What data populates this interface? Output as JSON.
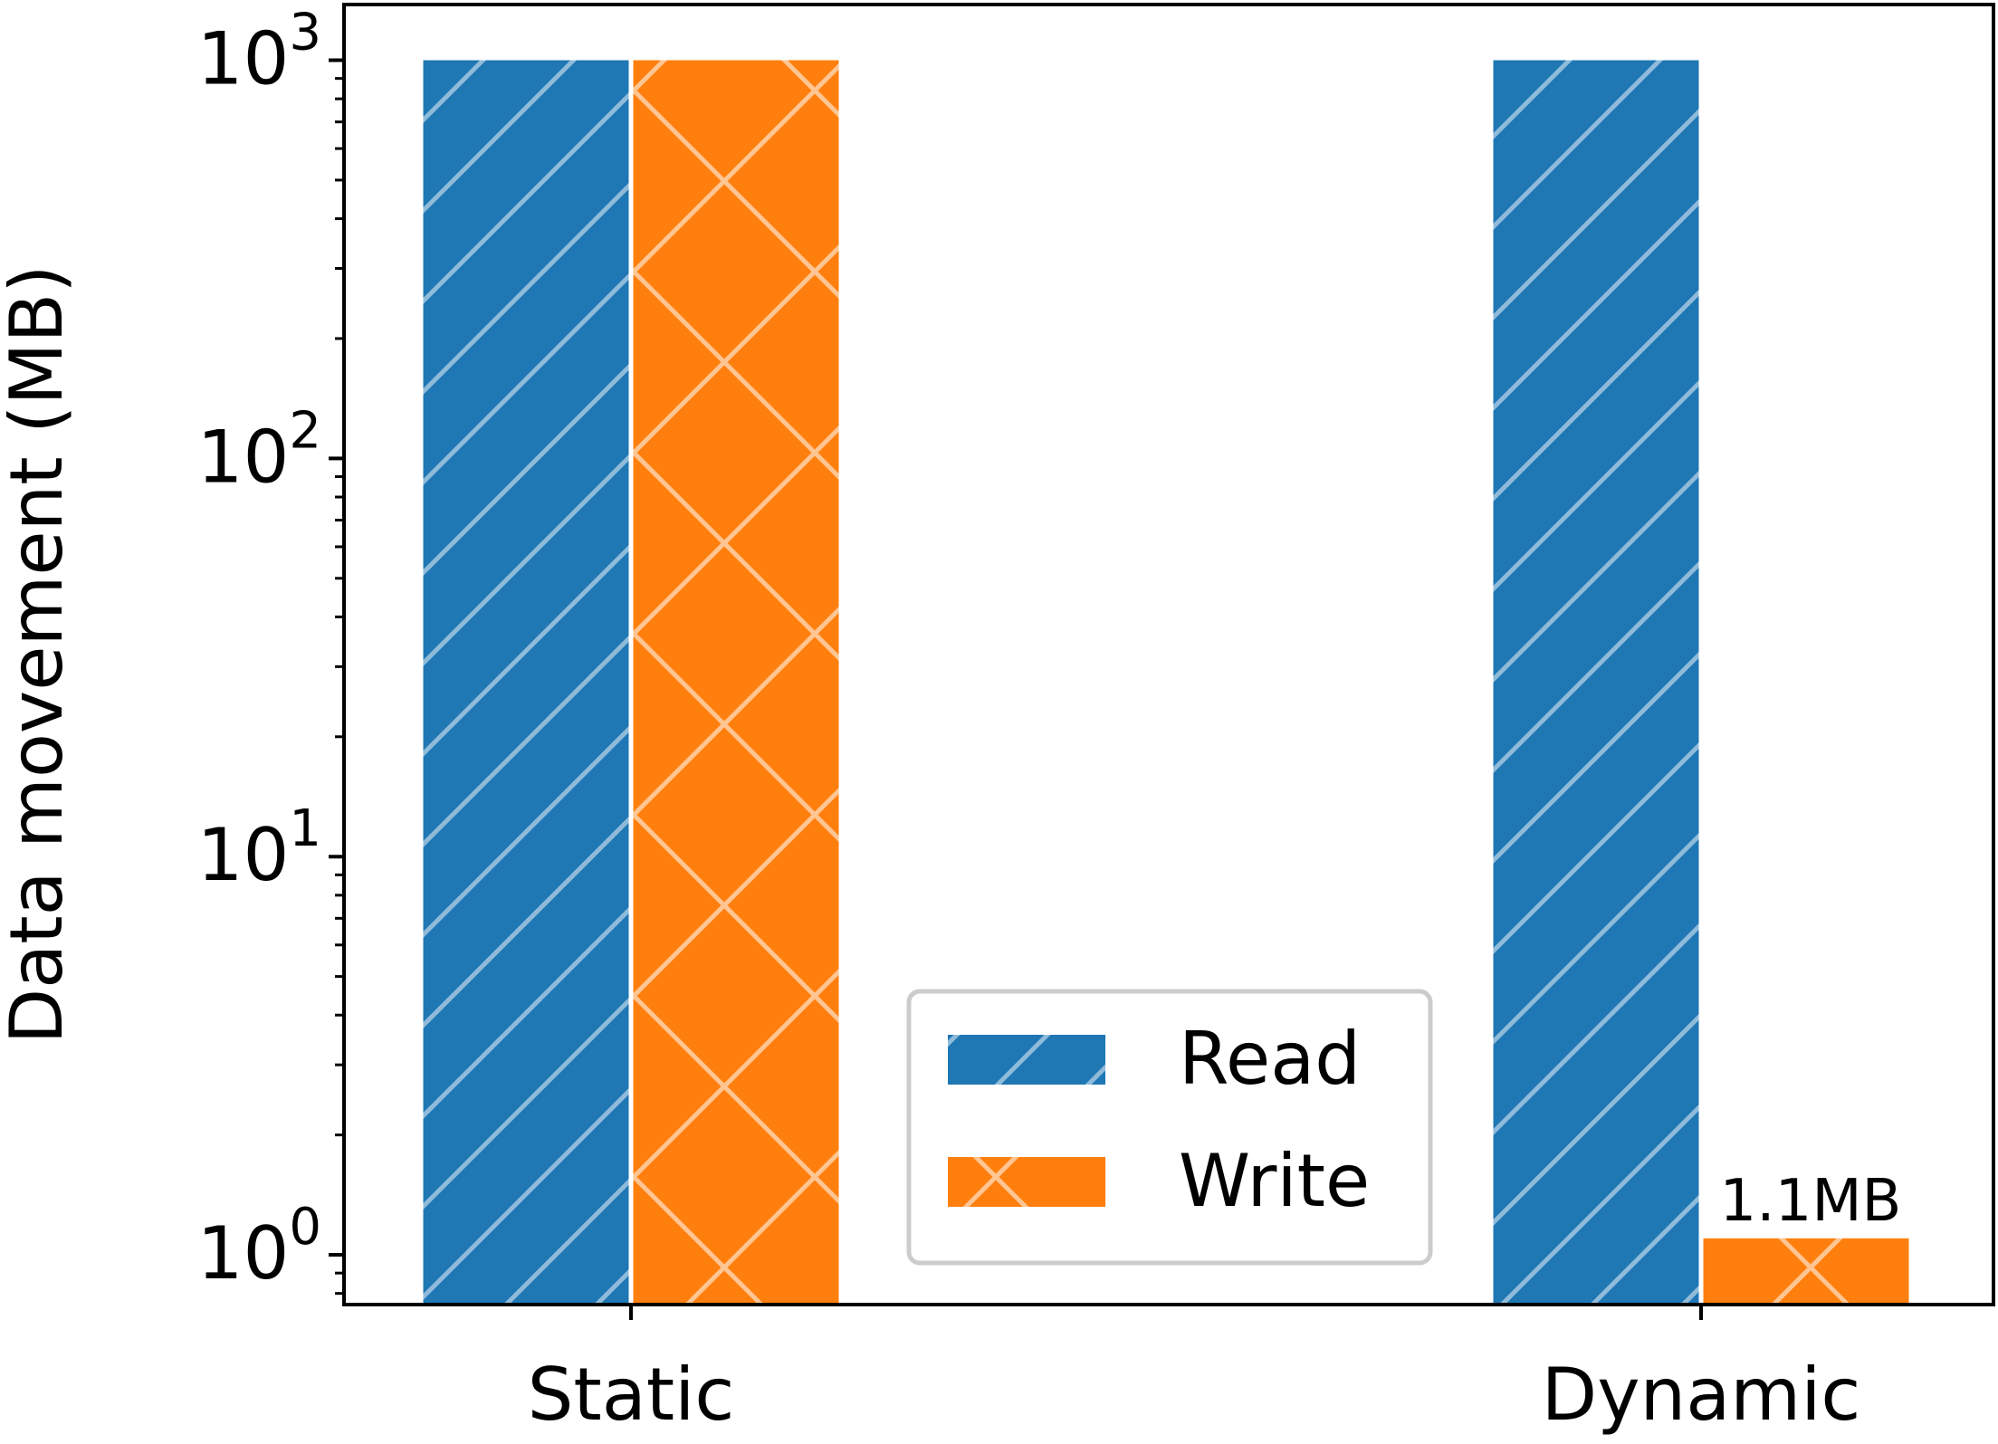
{
  "chart_data": {
    "type": "bar",
    "title": "",
    "xlabel": "",
    "ylabel": "Data movement (MB)",
    "yscale": "log",
    "ylim": [
      0.75,
      1380
    ],
    "yticks": [
      {
        "value": 1,
        "base": "10",
        "exp": "0"
      },
      {
        "value": 10,
        "base": "10",
        "exp": "1"
      },
      {
        "value": 100,
        "base": "10",
        "exp": "2"
      },
      {
        "value": 1000,
        "base": "10",
        "exp": "3"
      }
    ],
    "categories": [
      "Static",
      "Dynamic"
    ],
    "series": [
      {
        "name": "Read",
        "values": [
          1000,
          1000
        ],
        "color": "#1f77b4",
        "hatch": "diagonal"
      },
      {
        "name": "Write",
        "values": [
          1000,
          1.1
        ],
        "color": "#ff7f0e",
        "hatch": "cross"
      }
    ],
    "annotations": [
      {
        "text": "1.1MB",
        "category": "Dynamic",
        "series": "Write"
      }
    ],
    "legend": {
      "position": "lower-center"
    },
    "grid": false
  }
}
